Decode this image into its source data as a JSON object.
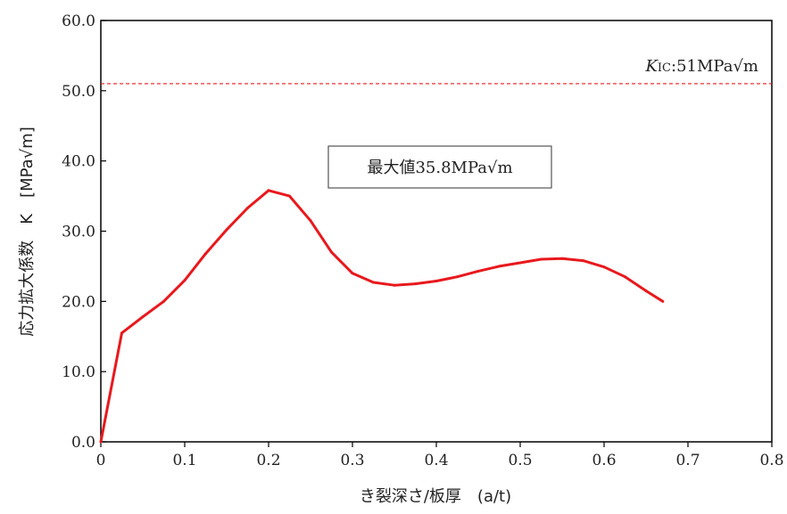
{
  "chart_data": {
    "type": "line",
    "xlabel": "き裂深さ/板厚　(a/t)",
    "ylabel": "応力拡大係数　K　[MPa√m]",
    "xlim": [
      0,
      0.8
    ],
    "ylim": [
      0,
      60
    ],
    "x_ticks": [
      "0",
      "0.1",
      "0.2",
      "0.3",
      "0.4",
      "0.5",
      "0.6",
      "0.7",
      "0.8"
    ],
    "y_ticks": [
      "0.0",
      "10.0",
      "20.0",
      "30.0",
      "40.0",
      "50.0",
      "60.0"
    ],
    "grid": false,
    "series": [
      {
        "color": "#e8191d",
        "x": [
          0,
          0.025,
          0.05,
          0.075,
          0.1,
          0.125,
          0.15,
          0.175,
          0.2,
          0.225,
          0.25,
          0.275,
          0.3,
          0.325,
          0.35,
          0.375,
          0.4,
          0.425,
          0.45,
          0.475,
          0.5,
          0.525,
          0.55,
          0.575,
          0.6,
          0.625,
          0.65,
          0.67
        ],
        "y": [
          0,
          15.5,
          17.8,
          20.0,
          23.0,
          26.8,
          30.2,
          33.3,
          35.8,
          35.0,
          31.5,
          27.0,
          24.0,
          22.7,
          22.3,
          22.5,
          22.9,
          23.5,
          24.3,
          25.0,
          25.5,
          26.0,
          26.1,
          25.8,
          24.9,
          23.5,
          21.5,
          20.0
        ]
      }
    ],
    "reference_line": {
      "y": 51,
      "color": "#e8191d",
      "style": "dashed",
      "label_italic": "K",
      "label_sub": "IC",
      "label_rest": ":51MPa√m"
    },
    "annotation_box": {
      "text": "最大値35.8MPa√m"
    }
  }
}
